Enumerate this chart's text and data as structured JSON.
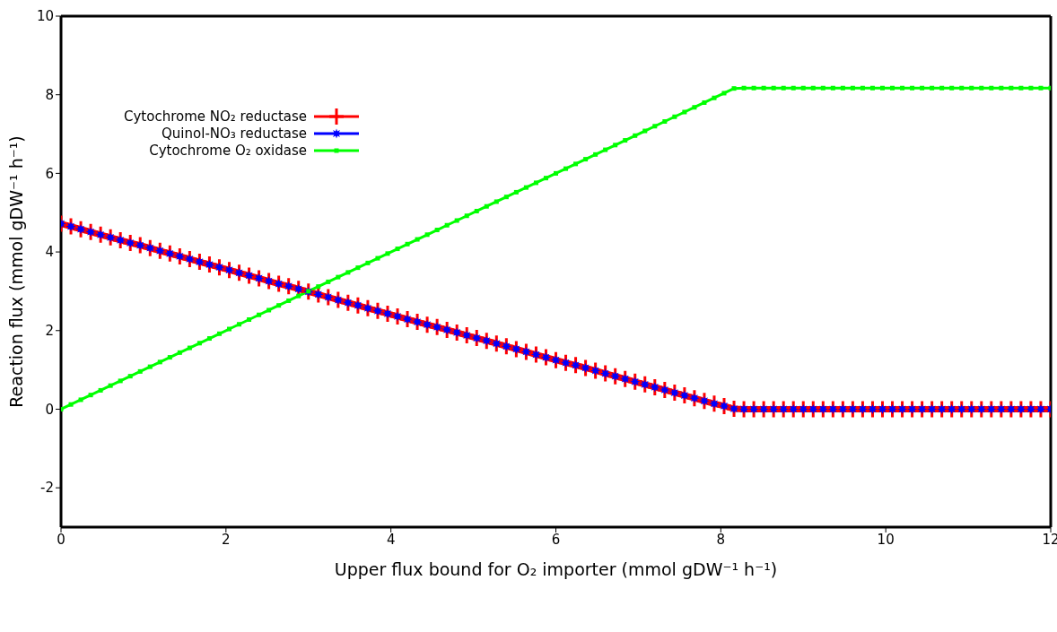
{
  "chart_data": {
    "type": "line",
    "xlabel": "Upper flux bound for O₂ importer (mmol gDW⁻¹ h⁻¹)",
    "ylabel": "Reaction flux (mmol gDW⁻¹ h⁻¹)",
    "x": [
      0,
      0.12,
      0.24,
      0.36,
      0.48,
      0.6,
      0.72,
      0.84,
      0.96,
      1.08,
      1.2,
      1.32,
      1.44,
      1.56,
      1.68,
      1.8,
      1.92,
      2.04,
      2.16,
      2.28,
      2.4,
      2.52,
      2.64,
      2.76,
      2.88,
      3,
      3.12,
      3.24,
      3.36,
      3.48,
      3.6,
      3.72,
      3.84,
      3.96,
      4.08,
      4.2,
      4.32,
      4.44,
      4.56,
      4.68,
      4.8,
      4.92,
      5.04,
      5.16,
      5.28,
      5.4,
      5.52,
      5.64,
      5.76,
      5.88,
      6,
      6.12,
      6.24,
      6.36,
      6.48,
      6.6,
      6.72,
      6.84,
      6.96,
      7.08,
      7.2,
      7.32,
      7.44,
      7.56,
      7.68,
      7.8,
      7.92,
      8.04,
      8.16,
      8.28,
      8.4,
      8.52,
      8.64,
      8.76,
      8.88,
      9,
      9.12,
      9.24,
      9.36,
      9.48,
      9.6,
      9.72,
      9.84,
      9.96,
      10.08,
      10.2,
      10.32,
      10.44,
      10.56,
      10.68,
      10.8,
      10.92,
      11.04,
      11.16,
      11.28,
      11.4,
      11.52,
      11.64,
      11.76,
      11.88,
      12
    ],
    "series": [
      {
        "name": "Cytochrome NO₂ reductase",
        "color": "#ff0000",
        "marker": "cross",
        "values": [
          4.72,
          4.65,
          4.58,
          4.51,
          4.44,
          4.37,
          4.3,
          4.23,
          4.17,
          4.1,
          4.03,
          3.96,
          3.89,
          3.82,
          3.75,
          3.68,
          3.61,
          3.54,
          3.47,
          3.4,
          3.33,
          3.26,
          3.19,
          3.13,
          3.06,
          2.99,
          2.92,
          2.85,
          2.78,
          2.71,
          2.64,
          2.57,
          2.5,
          2.43,
          2.36,
          2.29,
          2.22,
          2.15,
          2.09,
          2.02,
          1.95,
          1.88,
          1.81,
          1.74,
          1.67,
          1.6,
          1.53,
          1.46,
          1.39,
          1.32,
          1.25,
          1.18,
          1.12,
          1.05,
          0.98,
          0.91,
          0.84,
          0.77,
          0.7,
          0.63,
          0.56,
          0.49,
          0.42,
          0.35,
          0.28,
          0.21,
          0.14,
          0.08,
          0.01,
          0,
          0,
          0,
          0,
          0,
          0,
          0,
          0,
          0,
          0,
          0,
          0,
          0,
          0,
          0,
          0,
          0,
          0,
          0,
          0,
          0,
          0,
          0,
          0,
          0,
          0,
          0,
          0,
          0,
          0,
          0,
          0
        ]
      },
      {
        "name": "Quinol-NO₃ reductase",
        "color": "#0000ff",
        "marker": "star",
        "values": [
          4.72,
          4.65,
          4.58,
          4.51,
          4.44,
          4.37,
          4.3,
          4.23,
          4.17,
          4.1,
          4.03,
          3.96,
          3.89,
          3.82,
          3.75,
          3.68,
          3.61,
          3.54,
          3.47,
          3.4,
          3.33,
          3.26,
          3.19,
          3.13,
          3.06,
          2.99,
          2.92,
          2.85,
          2.78,
          2.71,
          2.64,
          2.57,
          2.5,
          2.43,
          2.36,
          2.29,
          2.22,
          2.15,
          2.09,
          2.02,
          1.95,
          1.88,
          1.81,
          1.74,
          1.67,
          1.6,
          1.53,
          1.46,
          1.39,
          1.32,
          1.25,
          1.18,
          1.12,
          1.05,
          0.98,
          0.91,
          0.84,
          0.77,
          0.7,
          0.63,
          0.56,
          0.49,
          0.42,
          0.35,
          0.28,
          0.21,
          0.14,
          0.08,
          0.01,
          0,
          0,
          0,
          0,
          0,
          0,
          0,
          0,
          0,
          0,
          0,
          0,
          0,
          0,
          0,
          0,
          0,
          0,
          0,
          0,
          0,
          0,
          0,
          0,
          0,
          0,
          0,
          0,
          0,
          0,
          0,
          0
        ]
      },
      {
        "name": "Cytochrome O₂ oxidase",
        "color": "#00ff00",
        "marker": "square",
        "values": [
          0,
          0.12,
          0.24,
          0.36,
          0.48,
          0.6,
          0.72,
          0.84,
          0.96,
          1.08,
          1.2,
          1.32,
          1.44,
          1.56,
          1.68,
          1.8,
          1.92,
          2.04,
          2.16,
          2.28,
          2.4,
          2.52,
          2.64,
          2.76,
          2.88,
          3,
          3.12,
          3.24,
          3.36,
          3.48,
          3.6,
          3.72,
          3.84,
          3.96,
          4.08,
          4.2,
          4.32,
          4.44,
          4.56,
          4.68,
          4.8,
          4.92,
          5.04,
          5.16,
          5.28,
          5.4,
          5.52,
          5.64,
          5.76,
          5.88,
          6,
          6.12,
          6.24,
          6.36,
          6.48,
          6.6,
          6.72,
          6.84,
          6.96,
          7.08,
          7.2,
          7.32,
          7.44,
          7.56,
          7.68,
          7.8,
          7.92,
          8.04,
          8.16,
          8.17,
          8.17,
          8.17,
          8.17,
          8.17,
          8.17,
          8.17,
          8.17,
          8.17,
          8.17,
          8.17,
          8.17,
          8.17,
          8.17,
          8.17,
          8.17,
          8.17,
          8.17,
          8.17,
          8.17,
          8.17,
          8.17,
          8.17,
          8.17,
          8.17,
          8.17,
          8.17,
          8.17,
          8.17,
          8.17,
          8.17,
          8.17
        ]
      }
    ],
    "xlim": [
      0,
      12
    ],
    "xticks": [
      0,
      2,
      4,
      6,
      8,
      10,
      12
    ],
    "ylim": [
      -3,
      10
    ],
    "yticks": [
      -2,
      0,
      2,
      4,
      6,
      8,
      10
    ],
    "legend": "top left",
    "grid": false,
    "line_style": "solid"
  }
}
